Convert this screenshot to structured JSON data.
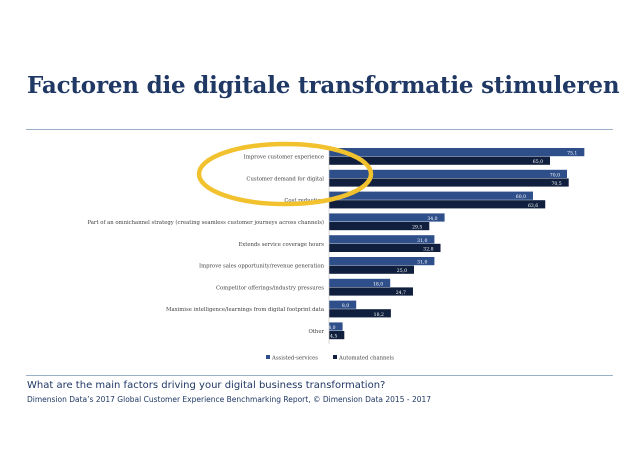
{
  "page": {
    "title": "Factoren die digitale transformatie stimuleren",
    "question": "What are the main factors driving your digital business transformation?",
    "source": "Dimension Data’s 2017 Global Customer Experience Benchmarking Report, © Dimension Data 2015 - 2017"
  },
  "colors": {
    "assisted": "#2e4f8a",
    "automated": "#0f1f3d",
    "highlight": "#f2c12e",
    "title": "#1f3864"
  },
  "chart_data": {
    "type": "bar",
    "orientation": "horizontal",
    "categories": [
      "Improve customer experience",
      "Customer demand for digital",
      "Cost reduction",
      "Part of an omnichannel strategy (creating seamless customer journeys across channels)",
      "Extends service coverage hours",
      "Improve sales opportunity/revenue generation",
      "Competitor offerings/industry pressures",
      "Maximise intelligence/learnings from digital footprint data",
      "Other"
    ],
    "series": [
      {
        "name": "Assisted-services",
        "values": [
          75.1,
          70.0,
          60.0,
          34.0,
          31.0,
          31.0,
          18.0,
          8.0,
          4.0
        ],
        "labels": [
          "75,1",
          "70,0",
          "60,0",
          "34,0",
          "31,0",
          "31,0",
          "18,0",
          "8,0",
          "4,0"
        ]
      },
      {
        "name": "Automated channels",
        "values": [
          65.0,
          70.5,
          63.6,
          29.5,
          32.8,
          25.0,
          24.7,
          18.2,
          4.5
        ],
        "labels": [
          "65,0",
          "70,5",
          "63,6",
          "29,5",
          "32,8",
          "25,0",
          "24,7",
          "18,2",
          "4,5"
        ]
      }
    ],
    "xlim": [
      0,
      80
    ],
    "legend": "bottom-center",
    "highlighted_categories": [
      "Improve customer experience",
      "Customer demand for digital"
    ]
  }
}
